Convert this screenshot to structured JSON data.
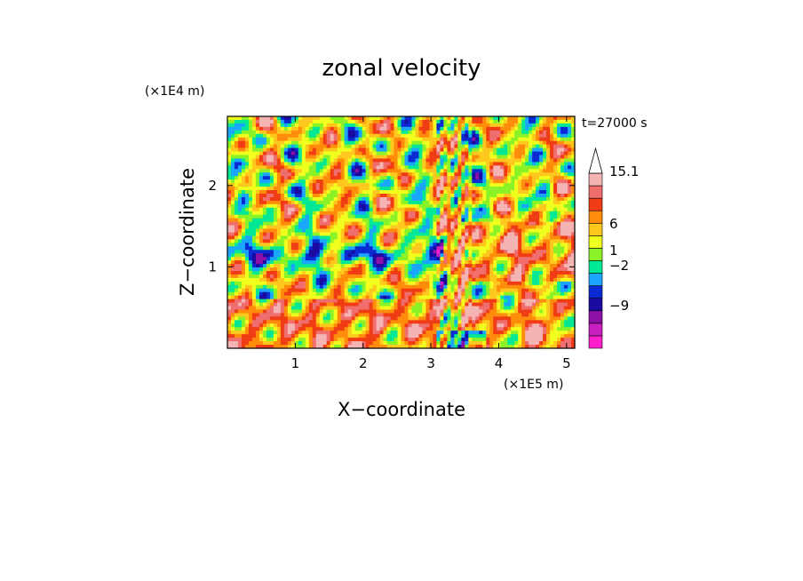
{
  "chart_data": {
    "type": "heatmap",
    "title": "zonal velocity",
    "xlabel": "X−coordinate",
    "ylabel": "Z−coordinate",
    "x_unit": "(×1E5 m)",
    "y_unit": "(×1E4 m)",
    "time_label": "t=27000 s",
    "xlim": [
      0,
      5.12
    ],
    "ylim": [
      0,
      2.85
    ],
    "x_ticks": [
      1,
      2,
      3,
      4,
      5
    ],
    "y_ticks": [
      1,
      2
    ],
    "colorbar": {
      "colors": [
        "#ff1fcc",
        "#c820c0",
        "#8c10a8",
        "#1a0aa0",
        "#0a2ad2",
        "#1aa6ff",
        "#00e896",
        "#8cf228",
        "#f0ff1e",
        "#ffc81e",
        "#ff8c0a",
        "#f03c14",
        "#f06e6e",
        "#f5b4b4"
      ],
      "arrow_color": "#ffffff",
      "labels": [
        "15.1",
        "6",
        "1",
        "−2",
        "−9"
      ],
      "label_levels": [
        15.1,
        6,
        1,
        -2,
        -9
      ]
    }
  }
}
